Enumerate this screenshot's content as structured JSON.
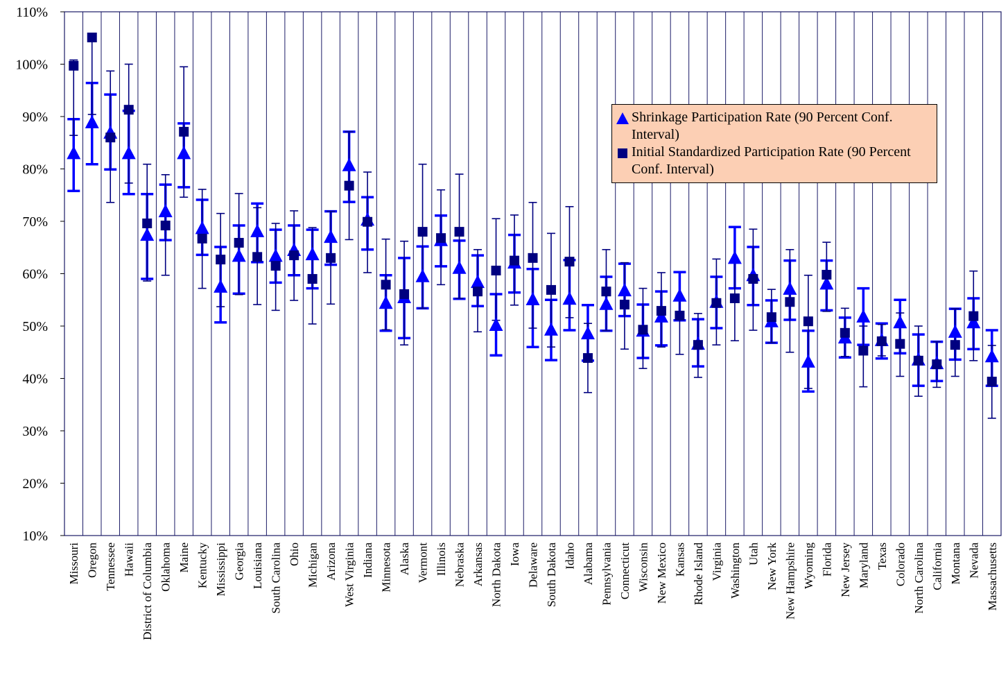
{
  "chart_data": {
    "type": "errorbar",
    "categories": [
      "Missouri",
      "Oregon",
      "Tennessee",
      "Hawaii",
      "District of Columbia",
      "Oklahoma",
      "Maine",
      "Kentucky",
      "Mississippi",
      "Georgia",
      "Louisiana",
      "South Carolina",
      "Ohio",
      "Michigan",
      "Arizona",
      "West Virginia",
      "Indiana",
      "Minnesota",
      "Alaska",
      "Vermont",
      "Illinois",
      "Nebraska",
      "Arkansas",
      "North Dakota",
      "Iowa",
      "Delaware",
      "South Dakota",
      "Idaho",
      "Alabama",
      "Pennsylvania",
      "Connecticut",
      "Wisconsin",
      "New Mexico",
      "Kansas",
      "Rhode Island",
      "Virginia",
      "Washington",
      "Utah",
      "New York",
      "New Hampshire",
      "Wyoming",
      "Florida",
      "New Jersey",
      "Maryland",
      "Texas",
      "Colorado",
      "North Carolina",
      "California",
      "Montana",
      "Nevada",
      "Massachusetts"
    ],
    "series": [
      {
        "name": "Shrinkage Participation Rate (90 Percent Conf. Interval)",
        "color": "#0000ff",
        "marker": "triangle",
        "values": [
          82.8,
          88.7,
          86.7,
          82.8,
          67.2,
          71.7,
          82.8,
          68.5,
          57.3,
          63.2,
          67.9,
          63.2,
          64.3,
          63.5,
          66.8,
          80.5,
          70.1,
          54.2,
          55.3,
          59.3,
          66.2,
          60.9,
          58.2,
          50.0,
          61.9,
          54.9,
          49.1,
          55.0,
          48.4,
          54.0,
          56.6,
          48.9,
          51.6,
          55.6,
          46.4,
          54.4,
          62.8,
          59.5,
          50.7,
          56.9,
          43.0,
          57.9,
          47.6,
          51.6,
          47.1,
          50.5,
          43.4,
          42.7,
          48.7,
          50.5,
          44.0
        ],
        "lower": [
          75.8,
          80.9,
          79.9,
          75.2,
          59.0,
          66.4,
          76.5,
          63.6,
          50.7,
          56.2,
          62.2,
          58.3,
          59.7,
          57.2,
          61.7,
          73.7,
          64.6,
          49.1,
          47.7,
          53.4,
          61.4,
          55.2,
          53.8,
          44.4,
          56.4,
          46.0,
          43.5,
          49.2,
          43.4,
          49.1,
          51.9,
          43.9,
          46.3,
          51.1,
          42.3,
          49.6,
          57.2,
          54.0,
          46.8,
          51.2,
          37.5,
          53.0,
          44.0,
          46.4,
          43.8,
          44.8,
          38.6,
          39.5,
          43.6,
          45.6,
          38.6
        ],
        "upper": [
          89.5,
          96.4,
          94.2,
          91.1,
          75.2,
          77.0,
          88.7,
          74.1,
          65.1,
          69.2,
          73.4,
          68.4,
          69.2,
          68.4,
          71.9,
          87.1,
          74.6,
          59.7,
          63.0,
          65.2,
          71.1,
          66.3,
          63.5,
          56.1,
          67.4,
          60.9,
          55.0,
          62.6,
          54.0,
          59.4,
          61.9,
          54.1,
          56.6,
          60.3,
          51.3,
          59.4,
          68.9,
          65.1,
          54.9,
          62.5,
          49.1,
          62.5,
          51.6,
          57.2,
          50.5,
          55.0,
          48.4,
          47.0,
          53.3,
          55.3,
          49.2
        ]
      },
      {
        "name": "Initial Standardized Participation Rate (90 Percent Conf. Interval)",
        "color": "#000080",
        "marker": "square",
        "values": [
          99.7,
          105.1,
          86.0,
          91.3,
          69.6,
          69.2,
          87.1,
          66.7,
          62.7,
          65.9,
          63.2,
          61.5,
          63.5,
          59.0,
          63.0,
          76.8,
          69.9,
          57.9,
          56.1,
          68.0,
          66.8,
          68.0,
          56.6,
          60.6,
          62.5,
          63.0,
          56.9,
          62.3,
          43.9,
          56.6,
          54.1,
          49.3,
          52.9,
          52.0,
          46.4,
          54.4,
          55.3,
          59.0,
          51.7,
          54.6,
          50.9,
          59.8,
          48.7,
          45.3,
          47.1,
          46.6,
          43.4,
          42.7,
          46.4,
          51.9,
          39.4
        ],
        "lower": [
          86.4,
          90.4,
          73.6,
          77.3,
          58.6,
          59.7,
          74.6,
          57.2,
          53.7,
          56.0,
          54.1,
          53.0,
          54.9,
          50.4,
          54.2,
          66.5,
          60.2,
          49.3,
          46.4,
          53.4,
          57.9,
          55.3,
          48.9,
          51.1,
          54.0,
          49.6,
          46.0,
          51.6,
          37.3,
          49.1,
          45.6,
          41.9,
          46.0,
          44.6,
          40.2,
          46.4,
          47.2,
          49.2,
          46.8,
          45.0,
          38.1,
          52.8,
          44.2,
          38.4,
          44.3,
          40.4,
          36.6,
          38.3,
          40.4,
          43.4,
          32.4
        ],
        "upper": [
          100.8,
          105.3,
          98.7,
          100.0,
          80.9,
          78.9,
          99.5,
          76.1,
          71.5,
          75.3,
          72.6,
          69.6,
          72.0,
          68.8,
          71.9,
          87.1,
          79.4,
          66.6,
          66.2,
          80.9,
          76.0,
          79.0,
          64.6,
          70.5,
          71.2,
          73.6,
          67.7,
          72.8,
          50.5,
          64.6,
          62.1,
          57.2,
          60.2,
          55.3,
          52.4,
          62.8,
          62.5,
          68.5,
          57.0,
          64.6,
          59.7,
          66.0,
          53.4,
          50.0,
          50.3,
          52.5,
          50.0,
          47.0,
          53.3,
          60.5,
          46.3
        ]
      }
    ],
    "ylim": [
      10,
      110
    ],
    "yticks": [
      {
        "value": 10,
        "label": "10%"
      },
      {
        "value": 20,
        "label": "20%"
      },
      {
        "value": 30,
        "label": "30%"
      },
      {
        "value": 40,
        "label": "40%"
      },
      {
        "value": 50,
        "label": "50%"
      },
      {
        "value": 60,
        "label": "60%"
      },
      {
        "value": 70,
        "label": "70%"
      },
      {
        "value": 80,
        "label": "80%"
      },
      {
        "value": 90,
        "label": "90%"
      },
      {
        "value": 100,
        "label": "100%"
      },
      {
        "value": 110,
        "label": "110%"
      }
    ]
  }
}
